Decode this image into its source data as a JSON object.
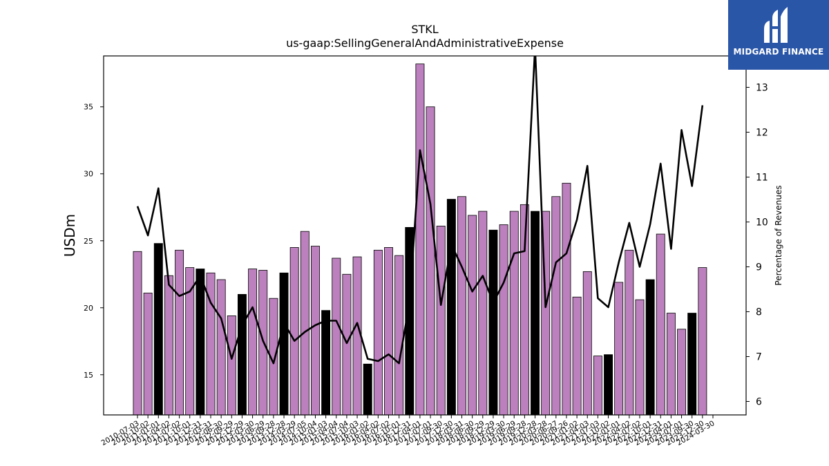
{
  "chart_data": {
    "type": "bar",
    "title": "STKL",
    "subtitle": "us-gaap:SellingGeneralAndAdministrativeExpense",
    "ylabel": "USDm",
    "y2label": "Percentage of Revenues",
    "ylim": [
      12.0,
      38.8
    ],
    "y2lim": [
      5.7,
      13.7
    ],
    "yticks": [
      15,
      20,
      25,
      30,
      35
    ],
    "y2ticks": [
      6,
      7,
      8,
      9,
      10,
      11,
      12,
      13
    ],
    "categories": [
      "2010-07-03",
      "2010-10-02",
      "2011-01-01",
      "2011-04-02",
      "2011-07-02",
      "2011-10-01",
      "2011-12-31",
      "2012-03-31",
      "2012-06-30",
      "2012-09-29",
      "2012-12-29",
      "2013-03-30",
      "2013-06-29",
      "2013-09-28",
      "2013-12-28",
      "2014-03-29",
      "2014-07-05",
      "2014-10-04",
      "2015-01-03",
      "2015-04-04",
      "2015-07-04",
      "2015-10-03",
      "2016-01-02",
      "2016-04-02",
      "2016-07-02",
      "2016-10-01",
      "2016-12-31",
      "2017-04-01",
      "2017-07-01",
      "2017-09-30",
      "2017-12-30",
      "2018-03-31",
      "2018-06-30",
      "2018-09-29",
      "2018-12-29",
      "2019-03-30",
      "2019-06-29",
      "2019-09-28",
      "2019-12-28",
      "2020-03-28",
      "2020-06-27",
      "2020-09-26",
      "2021-01-02",
      "2021-04-03",
      "2021-07-03",
      "2021-10-02",
      "2022-01-01",
      "2022-04-02",
      "2022-07-02",
      "2022-10-01",
      "2022-12-31",
      "2023-04-01",
      "2023-07-01",
      "2023-09-30",
      "2023-12-30",
      "2024-03-30"
    ],
    "values": [
      24.2,
      21.1,
      24.8,
      22.4,
      24.3,
      23.0,
      22.9,
      22.6,
      22.1,
      19.4,
      21.0,
      22.9,
      22.8,
      20.7,
      22.6,
      24.5,
      25.7,
      24.6,
      19.8,
      23.7,
      22.5,
      23.8,
      15.8,
      24.3,
      24.5,
      23.9,
      26.0,
      38.2,
      35.0,
      26.1,
      28.1,
      28.3,
      26.9,
      27.2,
      25.8,
      26.2,
      27.2,
      27.7,
      27.2,
      27.2,
      28.3,
      29.3,
      20.8,
      22.7,
      16.4,
      16.5,
      21.9,
      24.3,
      20.6,
      22.1,
      25.5,
      19.6,
      18.4,
      19.6,
      23.0,
      null
    ],
    "highlight": [
      false,
      false,
      true,
      false,
      false,
      false,
      true,
      false,
      false,
      false,
      true,
      false,
      false,
      false,
      true,
      false,
      false,
      false,
      true,
      false,
      false,
      false,
      true,
      false,
      false,
      false,
      true,
      false,
      false,
      false,
      true,
      false,
      false,
      false,
      true,
      false,
      false,
      false,
      true,
      false,
      false,
      false,
      false,
      false,
      false,
      true,
      false,
      false,
      false,
      true,
      false,
      false,
      false,
      true,
      false,
      false
    ],
    "series": [
      {
        "name": "",
        "axis": "right",
        "type": "line",
        "values": [
          10.35,
          9.7,
          10.75,
          8.6,
          8.35,
          8.45,
          8.8,
          8.2,
          7.85,
          6.95,
          7.7,
          8.1,
          7.35,
          6.85,
          7.75,
          7.35,
          7.55,
          7.7,
          7.8,
          7.8,
          7.3,
          7.75,
          6.95,
          6.9,
          7.05,
          6.85,
          8.2,
          11.6,
          10.4,
          8.15,
          9.5,
          9.0,
          8.45,
          8.8,
          8.2,
          8.65,
          9.3,
          9.35,
          13.9,
          8.1,
          9.1,
          9.3,
          10.05,
          11.25,
          8.3,
          8.1,
          9.1,
          9.98,
          9.0,
          9.95,
          11.3,
          9.4,
          12.05,
          10.8,
          12.6,
          null
        ]
      }
    ],
    "bar_color": "#bb80bd",
    "highlight_color": "#000000",
    "line_color": "#000000",
    "grid": false,
    "legend": "none"
  },
  "logo": {
    "name": "MIDGARD FINANCE",
    "color": "#2a56a8"
  }
}
